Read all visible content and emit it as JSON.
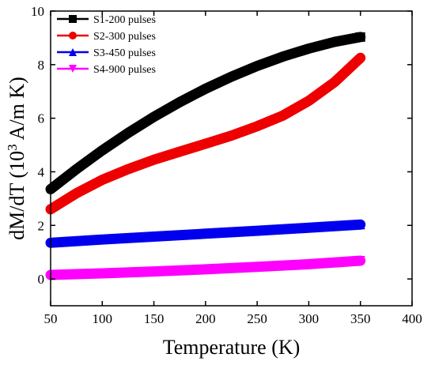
{
  "chart_data": {
    "type": "line",
    "title": "",
    "xlabel": "Temperature (K)",
    "ylabel": {
      "prefix": "dM/dT (10",
      "sup": "3",
      "suffix": " A/m K)"
    },
    "xlim": [
      50,
      400
    ],
    "ylim": [
      -1,
      10
    ],
    "xticks": [
      50,
      100,
      150,
      200,
      250,
      300,
      350,
      400
    ],
    "yticks": [
      0,
      2,
      4,
      6,
      8,
      10
    ],
    "grid": false,
    "legend_position": "top-left",
    "series": [
      {
        "name": "S1-200 pulses",
        "color": "#000000",
        "marker": "square",
        "x": [
          50,
          75,
          100,
          125,
          150,
          175,
          200,
          225,
          250,
          275,
          300,
          325,
          350
        ],
        "y": [
          3.35,
          4.1,
          4.8,
          5.45,
          6.05,
          6.6,
          7.1,
          7.55,
          7.95,
          8.3,
          8.6,
          8.85,
          9.03
        ]
      },
      {
        "name": "S2-300 pulses",
        "color": "#ee0000",
        "marker": "circle",
        "x": [
          50,
          75,
          100,
          125,
          150,
          175,
          200,
          225,
          250,
          275,
          300,
          325,
          350
        ],
        "y": [
          2.6,
          3.2,
          3.7,
          4.1,
          4.45,
          4.75,
          5.05,
          5.35,
          5.7,
          6.1,
          6.65,
          7.35,
          8.25
        ]
      },
      {
        "name": "S3-450 pulses",
        "color": "#0000ee",
        "marker": "triangle-up",
        "x": [
          50,
          100,
          150,
          200,
          250,
          300,
          350
        ],
        "y": [
          1.35,
          1.47,
          1.58,
          1.69,
          1.8,
          1.91,
          2.03
        ]
      },
      {
        "name": "S4-900 pulses",
        "color": "#ff00ff",
        "marker": "triangle-down",
        "x": [
          50,
          100,
          150,
          200,
          250,
          300,
          350
        ],
        "y": [
          0.15,
          0.21,
          0.28,
          0.36,
          0.45,
          0.55,
          0.68
        ]
      }
    ]
  }
}
